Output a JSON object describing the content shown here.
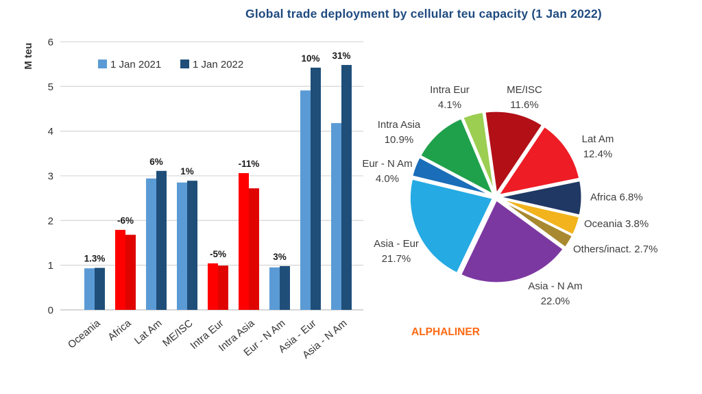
{
  "title": "Global trade deployment by cellular teu capacity (1 Jan 2022)",
  "source_label": "ALPHALINER",
  "colors": {
    "title_text": "#1f4a7f",
    "axis_text": "#333333",
    "grid_line": "#d9d9d9",
    "axis_line": "#bfbfbf",
    "growth_label_text": "#1a1a1a",
    "source_text": "#ff6a13",
    "pie_label_text": "#3d3d3d",
    "bar_red_2021": "#fe0000",
    "bar_red_2022": "#df0400",
    "pie_slice_border": "#ffffff"
  },
  "chart_data": [
    {
      "type": "bar",
      "title": "",
      "xlabel": "",
      "ylabel": "M teu",
      "ylim": [
        0,
        6
      ],
      "yticks": [
        0,
        1,
        2,
        3,
        4,
        5,
        6
      ],
      "grid": true,
      "legend_position": "top-inside",
      "categories": [
        "Oceania",
        "Africa",
        "Lat Am",
        "ME/ISC",
        "Intra Eur",
        "Intra Asia",
        "Eur - N Am",
        "Asia - Eur",
        "Asia - N Am"
      ],
      "series": [
        {
          "name": "1 Jan 2021",
          "color": "#5b9bd5",
          "values": [
            0.93,
            1.79,
            2.94,
            2.85,
            1.04,
            3.06,
            0.95,
            4.91,
            4.18
          ]
        },
        {
          "name": "1 Jan 2022",
          "color": "#1f4e79",
          "values": [
            0.94,
            1.68,
            3.11,
            2.89,
            0.99,
            2.72,
            0.98,
            5.42,
            5.48
          ]
        }
      ],
      "growth_labels": [
        "1.3%",
        "-6%",
        "6%",
        "1%",
        "-5%",
        "-11%",
        "3%",
        "10%",
        "31%"
      ],
      "red_highlight_categories": [
        "Africa",
        "Intra Eur",
        "Intra Asia"
      ]
    },
    {
      "type": "pie",
      "start_angle_deg": -8,
      "direction": "clockwise",
      "slices": [
        {
          "label": "ME/ISC",
          "value": 11.6,
          "pct_label": "11.6%",
          "color": "#b30f17"
        },
        {
          "label": "Lat Am",
          "value": 12.4,
          "pct_label": "12.4%",
          "color": "#ee1c25"
        },
        {
          "label": "Africa",
          "value": 6.8,
          "pct_label": "6.8%",
          "color": "#203864"
        },
        {
          "label": "Oceania",
          "value": 3.8,
          "pct_label": "3.8%",
          "color": "#f2b31c"
        },
        {
          "label": "Others/inact.",
          "value": 2.7,
          "pct_label": "2.7%",
          "color": "#a8892f"
        },
        {
          "label": "Asia - N Am",
          "value": 22.0,
          "pct_label": "22.0%",
          "color": "#7c38a1"
        },
        {
          "label": "Asia - Eur",
          "value": 21.7,
          "pct_label": "21.7%",
          "color": "#25aae3"
        },
        {
          "label": "Eur - N Am",
          "value": 4.0,
          "pct_label": "4.0%",
          "color": "#1a6db8"
        },
        {
          "label": "Intra Asia",
          "value": 10.9,
          "pct_label": "10.9%",
          "color": "#1fa14c"
        },
        {
          "label": "Intra Eur",
          "value": 4.1,
          "pct_label": "4.1%",
          "color": "#9bce51"
        }
      ]
    }
  ]
}
